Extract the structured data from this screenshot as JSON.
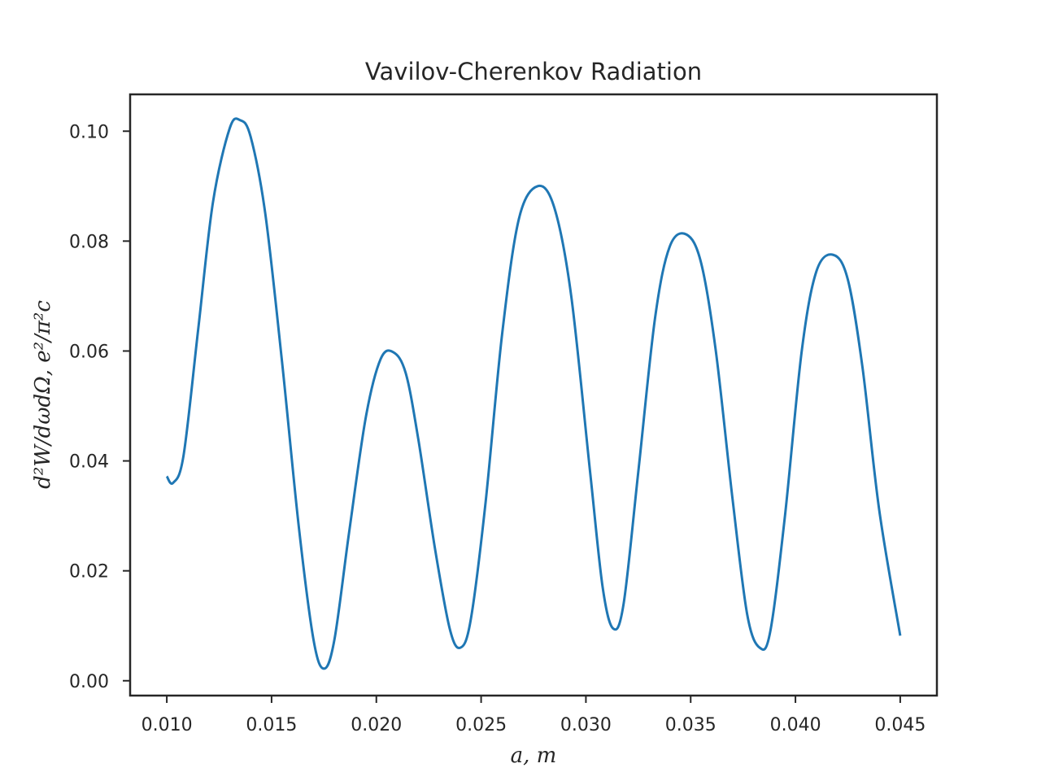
{
  "chart_data": {
    "type": "line",
    "title": "Vavilov-Cherenkov Radiation",
    "xlabel": "a, m",
    "ylabel": "d²W/dωdΩ, e²/π²c",
    "xlim": [
      0.00825,
      0.04675
    ],
    "ylim": [
      -0.0027,
      0.1067
    ],
    "xticks": [
      "0.010",
      "0.015",
      "0.020",
      "0.025",
      "0.030",
      "0.035",
      "0.040",
      "0.045"
    ],
    "yticks": [
      "0.00",
      "0.02",
      "0.04",
      "0.06",
      "0.08",
      "0.10"
    ],
    "grid": false,
    "series": [
      {
        "color": "#1f77b4",
        "x": [
          0.01,
          0.0103,
          0.0108,
          0.0115,
          0.0122,
          0.013,
          0.0135,
          0.014,
          0.0147,
          0.0155,
          0.0163,
          0.017,
          0.0175,
          0.018,
          0.0187,
          0.0195,
          0.0202,
          0.0208,
          0.0214,
          0.022,
          0.0228,
          0.0235,
          0.024,
          0.0245,
          0.0252,
          0.026,
          0.0268,
          0.0277,
          0.0285,
          0.0293,
          0.0302,
          0.0308,
          0.0313,
          0.0318,
          0.0325,
          0.0333,
          0.034,
          0.0348,
          0.0355,
          0.0362,
          0.037,
          0.0377,
          0.0383,
          0.0388,
          0.0395,
          0.0403,
          0.041,
          0.0418,
          0.0425,
          0.0432,
          0.044,
          0.045
        ],
        "y": [
          0.0372,
          0.036,
          0.041,
          0.064,
          0.087,
          0.1005,
          0.102,
          0.099,
          0.085,
          0.058,
          0.028,
          0.0075,
          0.0022,
          0.0075,
          0.027,
          0.048,
          0.0585,
          0.0598,
          0.056,
          0.044,
          0.024,
          0.0095,
          0.006,
          0.011,
          0.032,
          0.063,
          0.084,
          0.09,
          0.086,
          0.07,
          0.038,
          0.017,
          0.0095,
          0.014,
          0.038,
          0.066,
          0.079,
          0.0812,
          0.076,
          0.06,
          0.033,
          0.012,
          0.006,
          0.009,
          0.03,
          0.06,
          0.0745,
          0.0775,
          0.073,
          0.057,
          0.031,
          0.0082
        ]
      }
    ]
  }
}
